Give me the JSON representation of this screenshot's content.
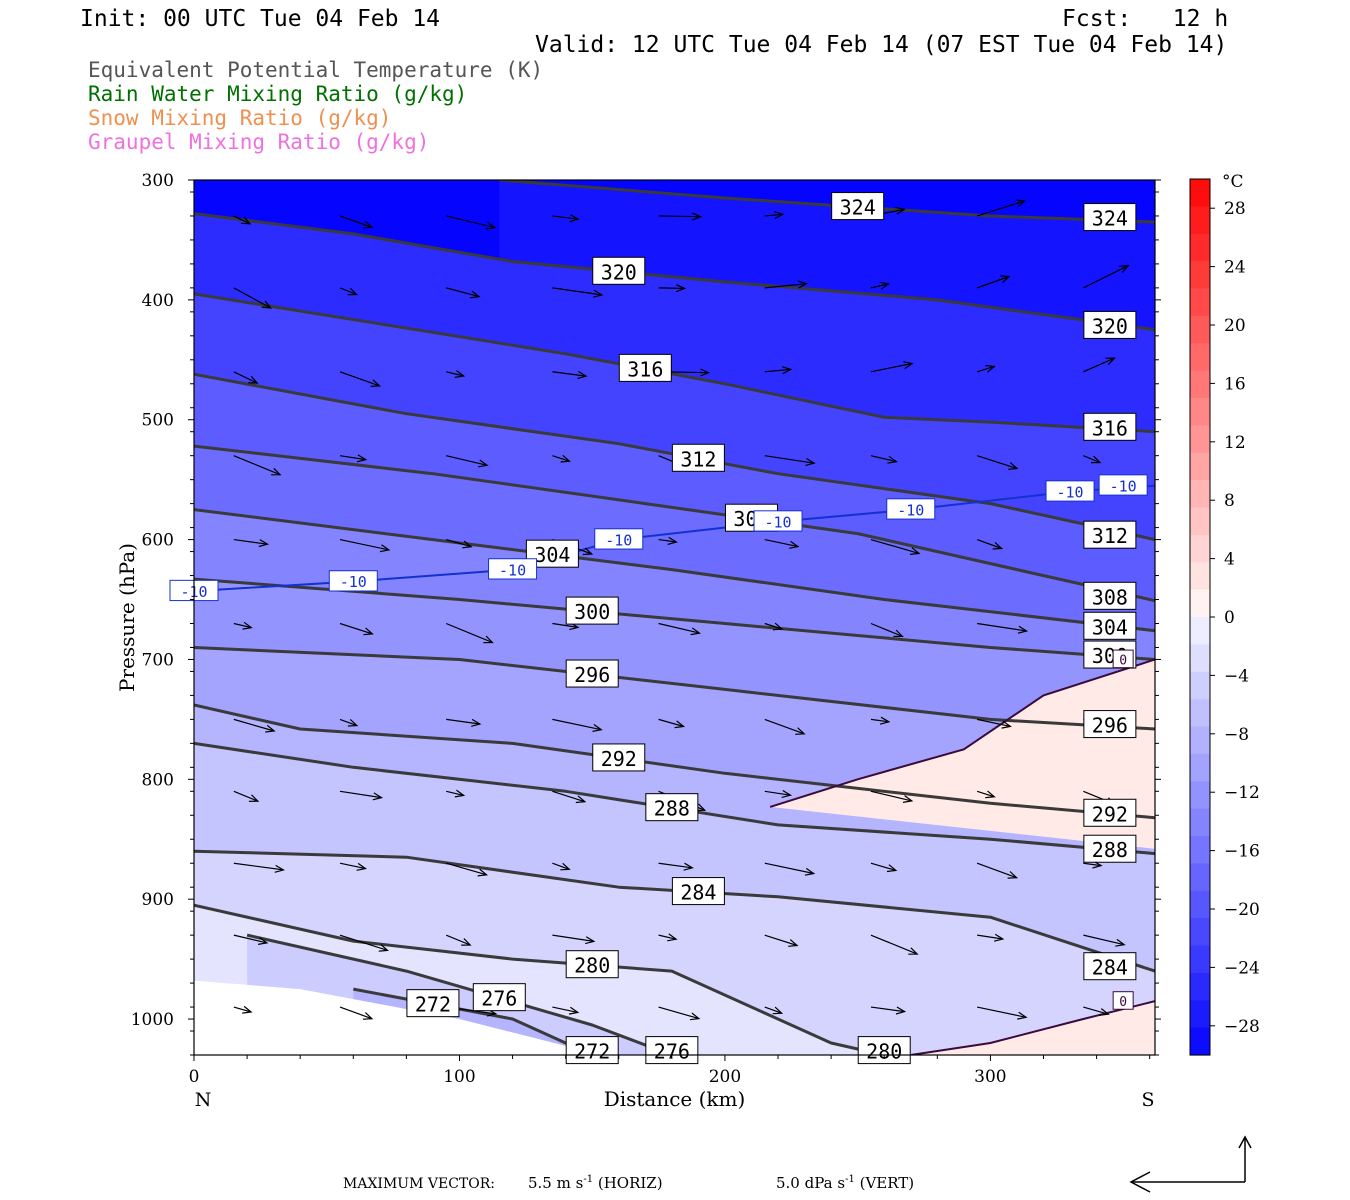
{
  "header": {
    "init": "Init: 00 UTC Tue 04 Feb 14",
    "fcst": "Fcst:   12 h",
    "valid": "Valid: 12 UTC Tue 04 Feb 14 (07 EST Tue 04 Feb 14)"
  },
  "legend": [
    {
      "label": "Equivalent Potential Temperature (K)",
      "color": "#555555"
    },
    {
      "label": "Rain Water Mixing Ratio (g/kg)",
      "color": "#007000"
    },
    {
      "label": "Snow Mixing Ratio (g/kg)",
      "color": "#f09050"
    },
    {
      "label": "Graupel Mixing Ratio (g/kg)",
      "color": "#f070e0"
    }
  ],
  "chart_data": {
    "type": "contour",
    "xlabel": "Distance (km)",
    "ylabel": "Pressure (hPa)",
    "xlim": [
      0,
      362
    ],
    "ylim": [
      300,
      1030
    ],
    "x_ticks": [
      0,
      100,
      200,
      300
    ],
    "y_ticks": [
      300,
      400,
      500,
      600,
      700,
      800,
      900,
      1000
    ],
    "x_end_labels": {
      "left": "N",
      "right": "S"
    },
    "colorbar": {
      "unit": "°C",
      "ticks": [
        28,
        24,
        20,
        16,
        12,
        8,
        4,
        0,
        -4,
        -8,
        -12,
        -16,
        -20,
        -24,
        -28
      ]
    },
    "theta_e_contours": [
      {
        "level": 324,
        "label": "324",
        "points": [
          [
            115,
            300
          ],
          [
            200,
            315
          ],
          [
            300,
            330
          ],
          [
            362,
            335
          ]
        ]
      },
      {
        "level": 320,
        "label": "320",
        "points": [
          [
            0,
            328
          ],
          [
            60,
            345
          ],
          [
            120,
            368
          ],
          [
            200,
            385
          ],
          [
            280,
            400
          ],
          [
            362,
            425
          ]
        ]
      },
      {
        "level": 316,
        "label": "316",
        "points": [
          [
            0,
            395
          ],
          [
            70,
            420
          ],
          [
            140,
            445
          ],
          [
            200,
            470
          ],
          [
            260,
            498
          ],
          [
            300,
            502
          ],
          [
            362,
            510
          ]
        ]
      },
      {
        "level": 312,
        "label": "312",
        "points": [
          [
            0,
            462
          ],
          [
            80,
            495
          ],
          [
            160,
            520
          ],
          [
            220,
            545
          ],
          [
            300,
            570
          ],
          [
            362,
            600
          ]
        ]
      },
      {
        "level": 308,
        "label": "308",
        "points": [
          [
            0,
            522
          ],
          [
            90,
            545
          ],
          [
            170,
            570
          ],
          [
            250,
            595
          ],
          [
            310,
            625
          ],
          [
            362,
            651
          ]
        ]
      },
      {
        "level": 304,
        "label": "304",
        "points": [
          [
            0,
            575
          ],
          [
            90,
            600
          ],
          [
            180,
            625
          ],
          [
            260,
            650
          ],
          [
            362,
            676
          ]
        ]
      },
      {
        "level": 300,
        "label": "300",
        "points": [
          [
            0,
            633
          ],
          [
            100,
            650
          ],
          [
            200,
            670
          ],
          [
            300,
            690
          ],
          [
            362,
            700
          ]
        ]
      },
      {
        "level": 296,
        "label": "296",
        "points": [
          [
            0,
            690
          ],
          [
            100,
            700
          ],
          [
            200,
            725
          ],
          [
            300,
            750
          ],
          [
            362,
            758
          ]
        ]
      },
      {
        "level": 292,
        "label": "292",
        "points": [
          [
            0,
            738
          ],
          [
            40,
            758
          ],
          [
            120,
            770
          ],
          [
            200,
            795
          ],
          [
            300,
            820
          ],
          [
            362,
            832
          ]
        ]
      },
      {
        "level": 288,
        "label": "288",
        "points": [
          [
            0,
            770
          ],
          [
            60,
            790
          ],
          [
            140,
            810
          ],
          [
            220,
            838
          ],
          [
            300,
            850
          ],
          [
            362,
            862
          ]
        ]
      },
      {
        "level": 284,
        "label": "284",
        "points": [
          [
            0,
            860
          ],
          [
            80,
            865
          ],
          [
            160,
            890
          ],
          [
            220,
            898
          ],
          [
            300,
            915
          ],
          [
            362,
            960
          ]
        ]
      },
      {
        "level": 280,
        "label": "280",
        "points": [
          [
            0,
            905
          ],
          [
            60,
            935
          ],
          [
            120,
            950
          ],
          [
            180,
            960
          ],
          [
            240,
            1020
          ],
          [
            260,
            1030
          ]
        ]
      },
      {
        "level": 276,
        "label": "276",
        "points": [
          [
            20,
            930
          ],
          [
            80,
            960
          ],
          [
            150,
            1005
          ],
          [
            180,
            1030
          ]
        ]
      },
      {
        "level": 272,
        "label": "272",
        "points": [
          [
            60,
            975
          ],
          [
            120,
            1000
          ],
          [
            150,
            1030
          ]
        ]
      }
    ],
    "temperature_contours": [
      {
        "level": -10,
        "label": "-10",
        "points": [
          [
            0,
            643
          ],
          [
            60,
            635
          ],
          [
            120,
            625
          ],
          [
            160,
            600
          ],
          [
            220,
            585
          ],
          [
            270,
            575
          ],
          [
            330,
            560
          ],
          [
            362,
            555
          ]
        ]
      },
      {
        "level": 0,
        "label": "0",
        "points": [
          [
            217,
            823
          ],
          [
            250,
            800
          ],
          [
            290,
            775
          ],
          [
            320,
            730
          ],
          [
            362,
            700
          ]
        ]
      },
      {
        "level": 0,
        "label": "0",
        "points": [
          [
            270,
            1030
          ],
          [
            300,
            1020
          ],
          [
            335,
            1000
          ],
          [
            362,
            985
          ]
        ]
      }
    ],
    "max_vector": {
      "label": "MAXIMUM VECTOR:",
      "horiz": "5.5 m s",
      "horiz_unit": "(HORIZ)",
      "vert": "5.0 dPa s",
      "vert_unit": "(VERT)",
      "exponent": "-1"
    }
  }
}
